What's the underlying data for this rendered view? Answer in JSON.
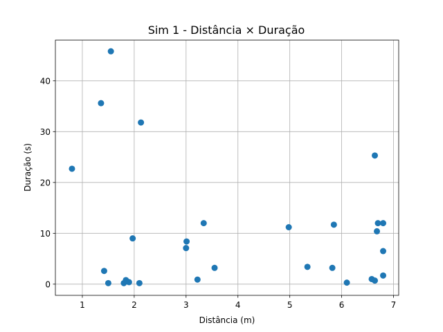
{
  "chart_data": {
    "type": "scatter",
    "title": "Sim 1 - Distância × Duração",
    "xlabel": "Distância (m)",
    "ylabel": "Duração (s)",
    "xlim": [
      0.48,
      7.1
    ],
    "ylim": [
      -2.2,
      48.0
    ],
    "xticks": [
      1,
      2,
      3,
      4,
      5,
      6,
      7
    ],
    "yticks": [
      0,
      10,
      20,
      30,
      40
    ],
    "grid": true,
    "marker_color": "#1f77b4",
    "points": [
      {
        "x": 0.8,
        "y": 22.7
      },
      {
        "x": 1.36,
        "y": 35.6
      },
      {
        "x": 1.55,
        "y": 45.8
      },
      {
        "x": 2.13,
        "y": 31.8
      },
      {
        "x": 1.42,
        "y": 2.6
      },
      {
        "x": 1.5,
        "y": 0.2
      },
      {
        "x": 1.8,
        "y": 0.2
      },
      {
        "x": 1.84,
        "y": 0.8
      },
      {
        "x": 1.9,
        "y": 0.4
      },
      {
        "x": 1.97,
        "y": 9.0
      },
      {
        "x": 2.1,
        "y": 0.2
      },
      {
        "x": 3.01,
        "y": 8.4
      },
      {
        "x": 3.0,
        "y": 7.1
      },
      {
        "x": 3.22,
        "y": 0.9
      },
      {
        "x": 3.34,
        "y": 12.0
      },
      {
        "x": 3.55,
        "y": 3.2
      },
      {
        "x": 4.98,
        "y": 11.2
      },
      {
        "x": 5.34,
        "y": 3.4
      },
      {
        "x": 5.82,
        "y": 3.2
      },
      {
        "x": 5.85,
        "y": 11.7
      },
      {
        "x": 6.1,
        "y": 0.3
      },
      {
        "x": 6.58,
        "y": 1.0
      },
      {
        "x": 6.64,
        "y": 0.7
      },
      {
        "x": 6.64,
        "y": 25.3
      },
      {
        "x": 6.68,
        "y": 10.4
      },
      {
        "x": 6.7,
        "y": 12.0
      },
      {
        "x": 6.8,
        "y": 12.0
      },
      {
        "x": 6.8,
        "y": 6.5
      },
      {
        "x": 6.8,
        "y": 1.7
      }
    ]
  }
}
